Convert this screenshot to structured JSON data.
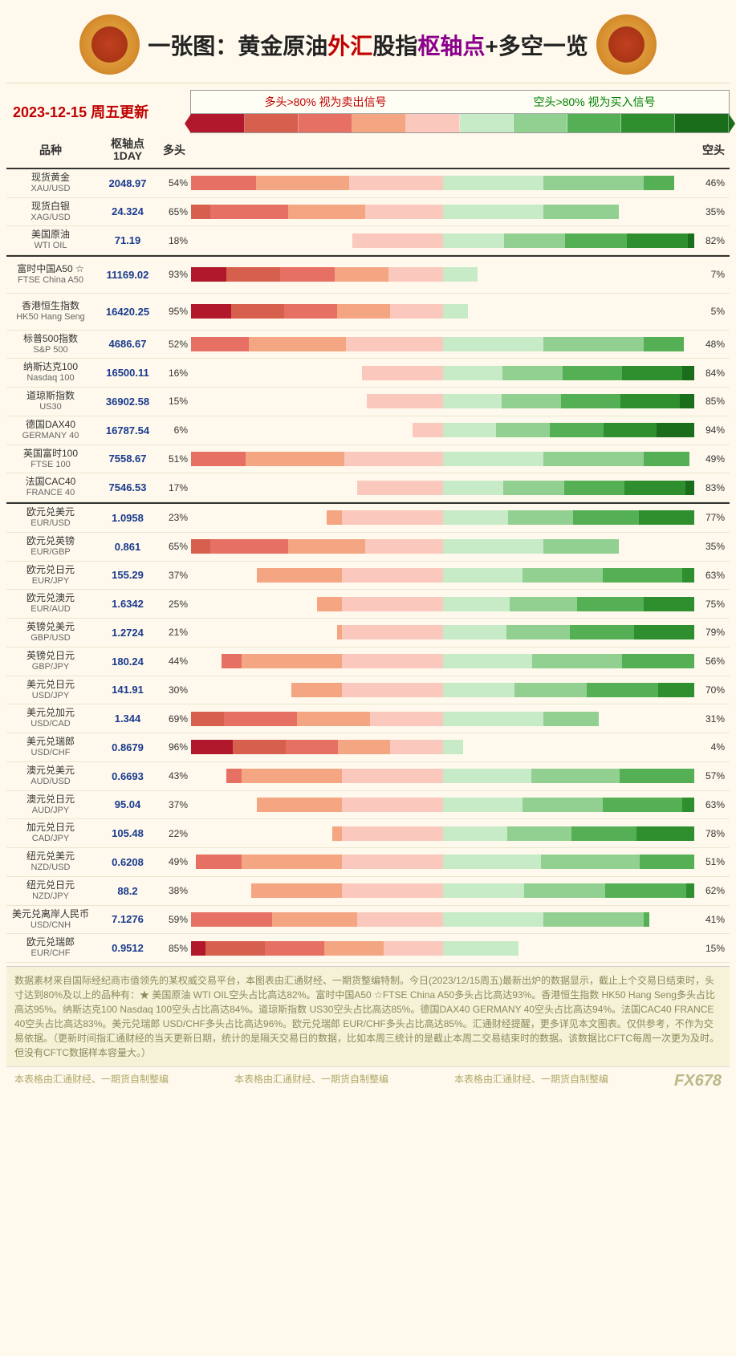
{
  "title_parts": [
    {
      "text": "一张图：",
      "cls": "black"
    },
    {
      "text": "黄金原油",
      "cls": "black"
    },
    {
      "text": "外汇",
      "cls": "red"
    },
    {
      "text": "股指",
      "cls": "black"
    },
    {
      "text": "枢轴点",
      "cls": "purple"
    },
    {
      "text": "+多空",
      "cls": "black"
    },
    {
      "text": "一览",
      "cls": "black"
    }
  ],
  "date_text": "2023-12-15  周五更新",
  "legend_long": "多头>80%  视为卖出信号",
  "legend_short": "空头>80%  视为买入信号",
  "gradient_colors": [
    "#b2182b",
    "#d6604d",
    "#e57063",
    "#f4a582",
    "#fbc8be",
    "#c7eac7",
    "#92d092",
    "#55b055",
    "#2f8f2f",
    "#1a6d1a"
  ],
  "columns": {
    "name": "品种",
    "pivot": "枢轴点\n1DAY",
    "long": "多头",
    "short": "空头"
  },
  "red_scale": [
    "#b2182b",
    "#d6604d",
    "#e57063",
    "#f4a582",
    "#fbc8be"
  ],
  "green_scale": [
    "#c7eac7",
    "#92d092",
    "#55b055",
    "#2f8f2f",
    "#1a6d1a"
  ],
  "sections": [
    {
      "rows": [
        {
          "cn": "现货黄金",
          "en": "XAU/USD",
          "pivot": "2048.97",
          "long": 54,
          "short": 46
        },
        {
          "cn": "现货白银",
          "en": "XAG/USD",
          "pivot": "24.324",
          "long": 65,
          "short": 35
        },
        {
          "cn": "美国原油",
          "en": "WTI OIL",
          "pivot": "71.19",
          "long": 18,
          "short": 82
        }
      ]
    },
    {
      "rows": [
        {
          "cn": "富时中国A50 ☆",
          "en": "FTSE China A50",
          "pivot": "11169.02",
          "long": 93,
          "short": 7,
          "tall": true
        },
        {
          "cn": "香港恒生指数",
          "en": "HK50 Hang Seng",
          "pivot": "16420.25",
          "long": 95,
          "short": 5,
          "tall": true
        },
        {
          "cn": "标普500指数",
          "en": "S&P 500",
          "pivot": "4686.67",
          "long": 52,
          "short": 48
        },
        {
          "cn": "纳斯达克100",
          "en": "Nasdaq 100",
          "pivot": "16500.11",
          "long": 16,
          "short": 84
        },
        {
          "cn": "道琼斯指数",
          "en": "US30",
          "pivot": "36902.58",
          "long": 15,
          "short": 85
        },
        {
          "cn": "德国DAX40",
          "en": "GERMANY 40",
          "pivot": "16787.54",
          "long": 6,
          "short": 94
        },
        {
          "cn": "英国富时100",
          "en": "FTSE 100",
          "pivot": "7558.67",
          "long": 51,
          "short": 49
        },
        {
          "cn": "法国CAC40",
          "en": "FRANCE 40",
          "pivot": "7546.53",
          "long": 17,
          "short": 83
        }
      ]
    },
    {
      "rows": [
        {
          "cn": "欧元兑美元",
          "en": "EUR/USD",
          "pivot": "1.0958",
          "long": 23,
          "short": 77
        },
        {
          "cn": "欧元兑英镑",
          "en": "EUR/GBP",
          "pivot": "0.861",
          "long": 65,
          "short": 35
        },
        {
          "cn": "欧元兑日元",
          "en": "EUR/JPY",
          "pivot": "155.29",
          "long": 37,
          "short": 63
        },
        {
          "cn": "欧元兑澳元",
          "en": "EUR/AUD",
          "pivot": "1.6342",
          "long": 25,
          "short": 75
        },
        {
          "cn": "英镑兑美元",
          "en": "GBP/USD",
          "pivot": "1.2724",
          "long": 21,
          "short": 79
        },
        {
          "cn": "英镑兑日元",
          "en": "GBP/JPY",
          "pivot": "180.24",
          "long": 44,
          "short": 56
        },
        {
          "cn": "美元兑日元",
          "en": "USD/JPY",
          "pivot": "141.91",
          "long": 30,
          "short": 70
        },
        {
          "cn": "美元兑加元",
          "en": "USD/CAD",
          "pivot": "1.344",
          "long": 69,
          "short": 31
        },
        {
          "cn": "美元兑瑞郎",
          "en": "USD/CHF",
          "pivot": "0.8679",
          "long": 96,
          "short": 4
        },
        {
          "cn": "澳元兑美元",
          "en": "AUD/USD",
          "pivot": "0.6693",
          "long": 43,
          "short": 57
        },
        {
          "cn": "澳元兑日元",
          "en": "AUD/JPY",
          "pivot": "95.04",
          "long": 37,
          "short": 63
        },
        {
          "cn": "加元兑日元",
          "en": "CAD/JPY",
          "pivot": "105.48",
          "long": 22,
          "short": 78
        },
        {
          "cn": "纽元兑美元",
          "en": "NZD/USD",
          "pivot": "0.6208",
          "long": 49,
          "short": 51
        },
        {
          "cn": "纽元兑日元",
          "en": "NZD/JPY",
          "pivot": "88.2",
          "long": 38,
          "short": 62
        },
        {
          "cn": "美元兑离岸人民币",
          "en": "USD/CNH",
          "pivot": "7.1276",
          "long": 59,
          "short": 41
        },
        {
          "cn": "欧元兑瑞郎",
          "en": "EUR/CHF",
          "pivot": "0.9512",
          "long": 85,
          "short": 15
        }
      ]
    }
  ],
  "footer_text": "数据素材来自国际经纪商市值领先的某权威交易平台，本图表由汇通财经、一期货整编特制。今日(2023/12/15周五)最新出炉的数据显示，截止上个交易日结束时，头寸达到80%及以上的品种有：★ 美国原油 WTI OIL空头占比高达82%。富时中国A50 ☆FTSE China A50多头占比高达93%。香港恒生指数 HK50 Hang Seng多头占比高达95%。纳斯达克100 Nasdaq 100空头占比高达84%。道琼斯指数 US30空头占比高达85%。德国DAX40       GERMANY 40空头占比高达94%。法国CAC40       FRANCE 40空头占比高达83%。美元兑瑞郎 USD/CHF多头占比高达96%。欧元兑瑞郎 EUR/CHF多头占比高达85%。汇通财经提醒，更多详见本文图表。仅供参考，不作为交易依据。（更新时间指汇通财经的当天更新日期，统计的是隔天交易日的数据，比如本周三统计的是截止本周二交易结束时的数据。该数据比CFTC每周一次更为及时。但没有CFTC数据样本容量大。）",
  "credit_text": "本表格由汇通财经、一期货自制整编",
  "watermark": "FX678"
}
